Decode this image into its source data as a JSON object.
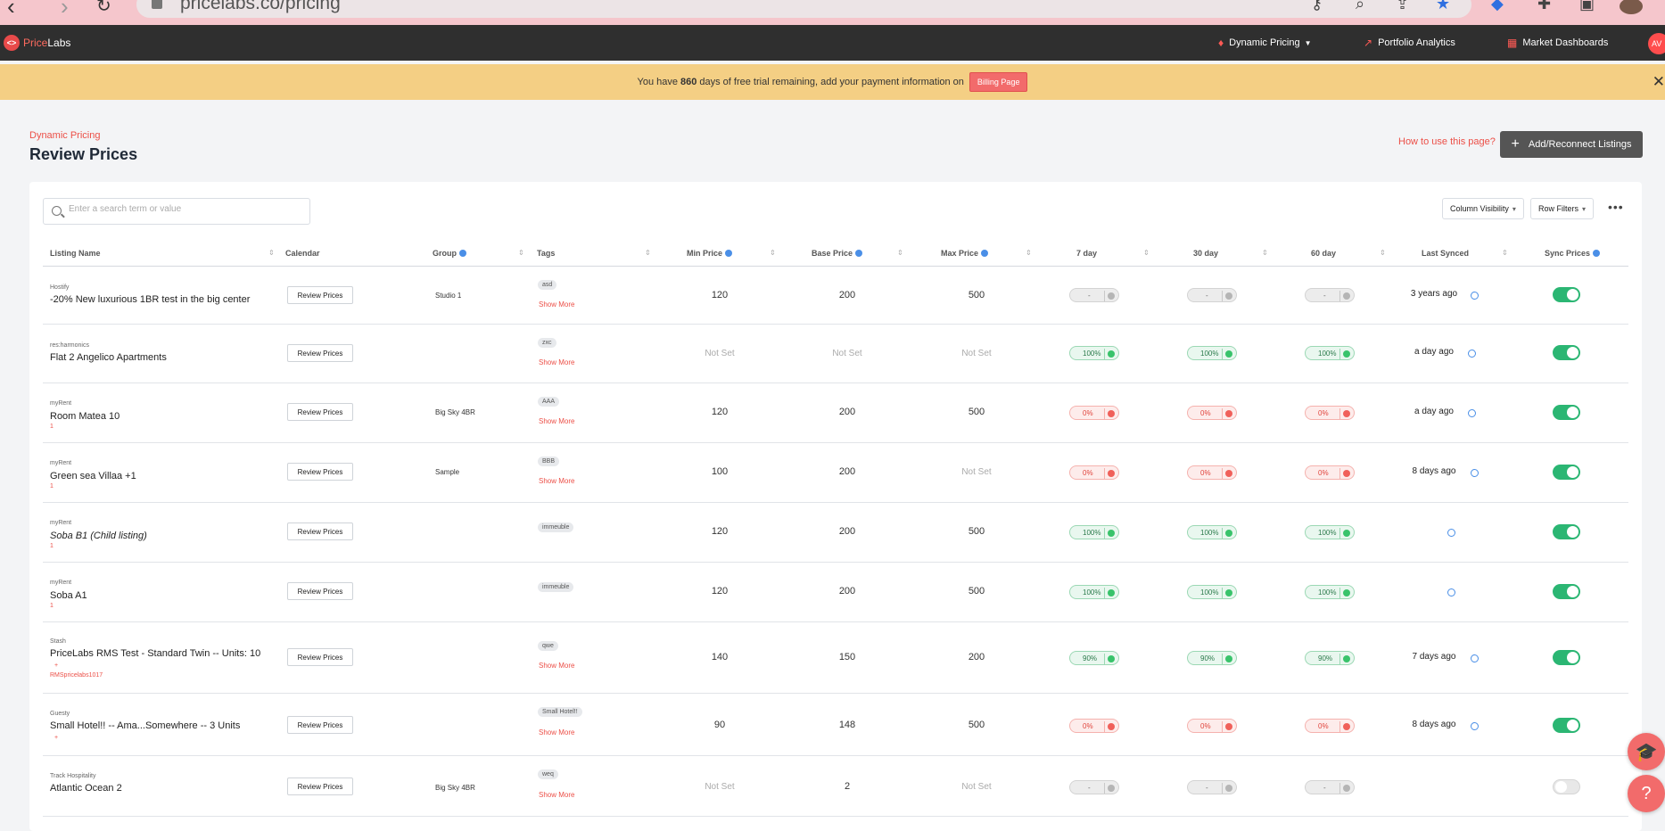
{
  "browser": {
    "url": "pricelabs.co/pricing"
  },
  "app": {
    "logo_price": "Price",
    "logo_labs": "Labs",
    "avatar_initials": "AV"
  },
  "nav": {
    "dynamic_pricing": "Dynamic Pricing",
    "portfolio_analytics": "Portfolio Analytics",
    "market_dashboards": "Market Dashboards"
  },
  "banner": {
    "text_before": "You have",
    "days": "860",
    "text_after": "days of free trial remaining, add your payment information on",
    "billing_label": "Billing Page"
  },
  "page": {
    "breadcrumb": "Dynamic Pricing",
    "title": "Review Prices",
    "how_to": "How to use this page?",
    "add_button": "Add/Reconnect Listings"
  },
  "toolbar": {
    "search_placeholder": "Enter a search term or value",
    "column_visibility": "Column Visibility",
    "row_filters": "Row Filters"
  },
  "columns": {
    "listing_name": "Listing Name",
    "calendar": "Calendar",
    "group": "Group",
    "tags": "Tags",
    "min_price": "Min Price",
    "base_price": "Base Price",
    "max_price": "Max Price",
    "d7": "7 day",
    "d30": "30 day",
    "d60": "60 day",
    "last_synced": "Last Synced",
    "sync_prices": "Sync Prices"
  },
  "labels": {
    "review_prices": "Review Prices",
    "show_more": "Show More"
  },
  "colors": {
    "accent": "#ec4f47",
    "toggle_on": "#2bb673",
    "header_bg": "#2f2f2f",
    "banner_bg": "#f4cf84"
  },
  "rows": [
    {
      "pms": "Hostify",
      "name": "-20% New luxurious 1BR test in the big center",
      "sub": "",
      "group": "Studio 1",
      "tag": "asd",
      "show_more": true,
      "min": "120",
      "base": "200",
      "max": "500",
      "d7": "-",
      "d30": "-",
      "d60": "-",
      "occ_status": "grey",
      "synced": "3 years ago",
      "sync_on": true
    },
    {
      "pms": "res:harmonics",
      "name": "Flat 2 Angelico Apartments",
      "sub": "",
      "group": "",
      "tag": "zxc",
      "show_more": true,
      "min": "Not Set",
      "base": "Not Set",
      "max": "Not Set",
      "d7": "100%",
      "d30": "100%",
      "d60": "100%",
      "occ_status": "green",
      "synced": "a day ago",
      "sync_on": true
    },
    {
      "pms": "myRent",
      "name": "Room Matea 10",
      "sub": "1",
      "group": "Big Sky 4BR",
      "tag": "AAA",
      "show_more": true,
      "min": "120",
      "base": "200",
      "max": "500",
      "d7": "0%",
      "d30": "0%",
      "d60": "0%",
      "occ_status": "red",
      "synced": "a day ago",
      "sync_on": true
    },
    {
      "pms": "myRent",
      "name": "Green sea Villaa +1",
      "sub": "1",
      "group": "Sample",
      "tag": "BBB",
      "show_more": true,
      "min": "100",
      "base": "200",
      "max": "Not Set",
      "d7": "0%",
      "d30": "0%",
      "d60": "0%",
      "occ_status": "red",
      "synced": "8 days ago",
      "sync_on": true
    },
    {
      "pms": "myRent",
      "name": "Soba B1 (Child listing)",
      "sub": "1",
      "group": "",
      "tag": "immeuble",
      "show_more": false,
      "min": "120",
      "base": "200",
      "max": "500",
      "d7": "100%",
      "d30": "100%",
      "d60": "100%",
      "occ_status": "green",
      "synced": "",
      "sync_on": true
    },
    {
      "pms": "myRent",
      "name": "Soba A1",
      "sub": "1",
      "group": "",
      "tag": "immeuble",
      "show_more": false,
      "min": "120",
      "base": "200",
      "max": "500",
      "d7": "100%",
      "d30": "100%",
      "d60": "100%",
      "occ_status": "green",
      "synced": "",
      "sync_on": true
    },
    {
      "pms": "Stash",
      "name": "PriceLabs RMS Test - Standard Twin -- Units: 10",
      "sub": "+",
      "sub2": "RMSpricelabs1017",
      "group": "",
      "tag": "qwe",
      "show_more": true,
      "min": "140",
      "base": "150",
      "max": "200",
      "d7": "90%",
      "d30": "90%",
      "d60": "90%",
      "occ_status": "green",
      "synced": "7 days ago",
      "sync_on": true
    },
    {
      "pms": "Guesty",
      "name": "Small Hotel!! -- Ama...Somewhere -- 3 Units",
      "sub": "+",
      "group": "",
      "tag": "Small Hotel!!",
      "show_more": true,
      "min": "90",
      "base": "148",
      "max": "500",
      "d7": "0%",
      "d30": "0%",
      "d60": "0%",
      "occ_status": "red",
      "synced": "8 days ago",
      "sync_on": true
    },
    {
      "pms": "Track Hospitality",
      "name": "Atlantic Ocean 2",
      "sub": "",
      "group": "Big Sky 4BR",
      "tag": "weq",
      "show_more": true,
      "min": "Not Set",
      "base": "2",
      "max": "Not Set",
      "d7": "-",
      "d30": "-",
      "d60": "-",
      "occ_status": "grey",
      "synced": "",
      "sync_on": false
    }
  ]
}
